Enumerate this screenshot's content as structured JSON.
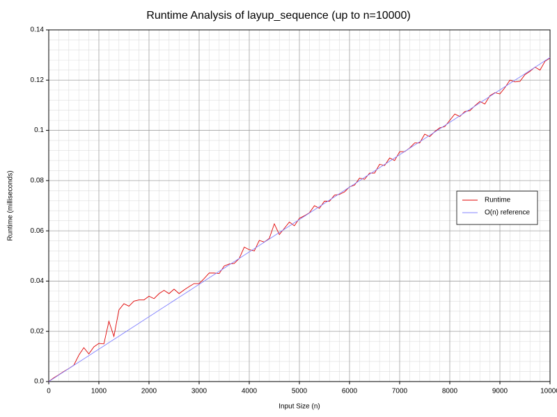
{
  "chart_data": {
    "type": "line",
    "title": "Runtime Analysis of layup_sequence (up to n=10000)",
    "xlabel": "Input Size (n)",
    "ylabel": "Runtime (milliseconds)",
    "x": [
      0,
      100,
      200,
      300,
      400,
      500,
      600,
      700,
      800,
      900,
      1000,
      1100,
      1200,
      1300,
      1400,
      1500,
      1600,
      1700,
      1800,
      1900,
      2000,
      2100,
      2200,
      2300,
      2400,
      2500,
      2600,
      2700,
      2800,
      2900,
      3000,
      3100,
      3200,
      3300,
      3400,
      3500,
      3600,
      3700,
      3800,
      3900,
      4000,
      4100,
      4200,
      4300,
      4400,
      4500,
      4600,
      4700,
      4800,
      4900,
      5000,
      5100,
      5200,
      5300,
      5400,
      5500,
      5600,
      5700,
      5800,
      5900,
      6000,
      6100,
      6200,
      6300,
      6400,
      6500,
      6600,
      6700,
      6800,
      6900,
      7000,
      7100,
      7200,
      7300,
      7400,
      7500,
      7600,
      7700,
      7800,
      7900,
      8000,
      8100,
      8200,
      8300,
      8400,
      8500,
      8600,
      8700,
      8800,
      8900,
      9000,
      9100,
      9200,
      9300,
      9400,
      9500,
      9600,
      9700,
      9800,
      9900,
      10000
    ],
    "series": [
      {
        "name": "Runtime",
        "color": "#e00000",
        "values": [
          0,
          0.0015,
          0.0027,
          0.004,
          0.0052,
          0.0065,
          0.0105,
          0.0135,
          0.011,
          0.0138,
          0.0152,
          0.015,
          0.024,
          0.018,
          0.0285,
          0.031,
          0.03,
          0.032,
          0.0325,
          0.0325,
          0.034,
          0.033,
          0.035,
          0.0363,
          0.035,
          0.0368,
          0.035,
          0.0365,
          0.0378,
          0.039,
          0.039,
          0.041,
          0.0432,
          0.0432,
          0.043,
          0.046,
          0.0468,
          0.047,
          0.049,
          0.0535,
          0.0525,
          0.052,
          0.0562,
          0.0555,
          0.057,
          0.0628,
          0.0585,
          0.061,
          0.0635,
          0.062,
          0.065,
          0.066,
          0.0672,
          0.07,
          0.069,
          0.0718,
          0.0718,
          0.0742,
          0.0745,
          0.0755,
          0.0775,
          0.0782,
          0.081,
          0.0805,
          0.083,
          0.083,
          0.0865,
          0.086,
          0.089,
          0.088,
          0.0915,
          0.0915,
          0.093,
          0.095,
          0.095,
          0.0985,
          0.0975,
          0.0995,
          0.101,
          0.1015,
          0.104,
          0.1065,
          0.1055,
          0.1075,
          0.1078,
          0.1098,
          0.1115,
          0.1105,
          0.1138,
          0.115,
          0.1145,
          0.117,
          0.12,
          0.1193,
          0.1195,
          0.1222,
          0.1235,
          0.1252,
          0.124,
          0.1275,
          0.1288
        ]
      },
      {
        "name": "O(n) reference",
        "color": "#8080ff",
        "values": [
          0,
          0.00129,
          0.00258,
          0.00387,
          0.00516,
          0.00645,
          0.00774,
          0.00903,
          0.01032,
          0.01161,
          0.0129,
          0.01419,
          0.01548,
          0.01677,
          0.01806,
          0.01935,
          0.02064,
          0.02193,
          0.02322,
          0.02451,
          0.0258,
          0.02709,
          0.02838,
          0.02967,
          0.03096,
          0.03225,
          0.03354,
          0.03483,
          0.03612,
          0.03741,
          0.0387,
          0.03999,
          0.04128,
          0.04257,
          0.04386,
          0.04515,
          0.04644,
          0.04773,
          0.04902,
          0.05031,
          0.0516,
          0.05289,
          0.05418,
          0.05547,
          0.05676,
          0.05805,
          0.05934,
          0.06063,
          0.06192,
          0.06321,
          0.0645,
          0.06579,
          0.06708,
          0.06837,
          0.06966,
          0.07095,
          0.07224,
          0.07353,
          0.07482,
          0.07611,
          0.0774,
          0.07869,
          0.07998,
          0.08127,
          0.08256,
          0.08385,
          0.08514,
          0.08643,
          0.08772,
          0.08901,
          0.0903,
          0.09159,
          0.09288,
          0.09417,
          0.09546,
          0.09675,
          0.09804,
          0.09933,
          0.10062,
          0.10191,
          0.1032,
          0.10449,
          0.10578,
          0.10707,
          0.10836,
          0.10965,
          0.11094,
          0.11223,
          0.11352,
          0.11481,
          0.1161,
          0.11739,
          0.11868,
          0.11997,
          0.12126,
          0.12255,
          0.12384,
          0.12513,
          0.12642,
          0.12771,
          0.129
        ]
      }
    ],
    "xlim": [
      0,
      10000
    ],
    "xticks": [
      0,
      1000,
      2000,
      3000,
      4000,
      5000,
      6000,
      7000,
      8000,
      9000,
      10000
    ],
    "ylim": [
      0,
      0.14
    ],
    "yticks": [
      {
        "value": 0,
        "label": "0.0"
      },
      0.02,
      0.04,
      0.06,
      0.08,
      0.1,
      0.12,
      0.14
    ],
    "grid": true,
    "minor_grid": true,
    "legend": "center right"
  }
}
